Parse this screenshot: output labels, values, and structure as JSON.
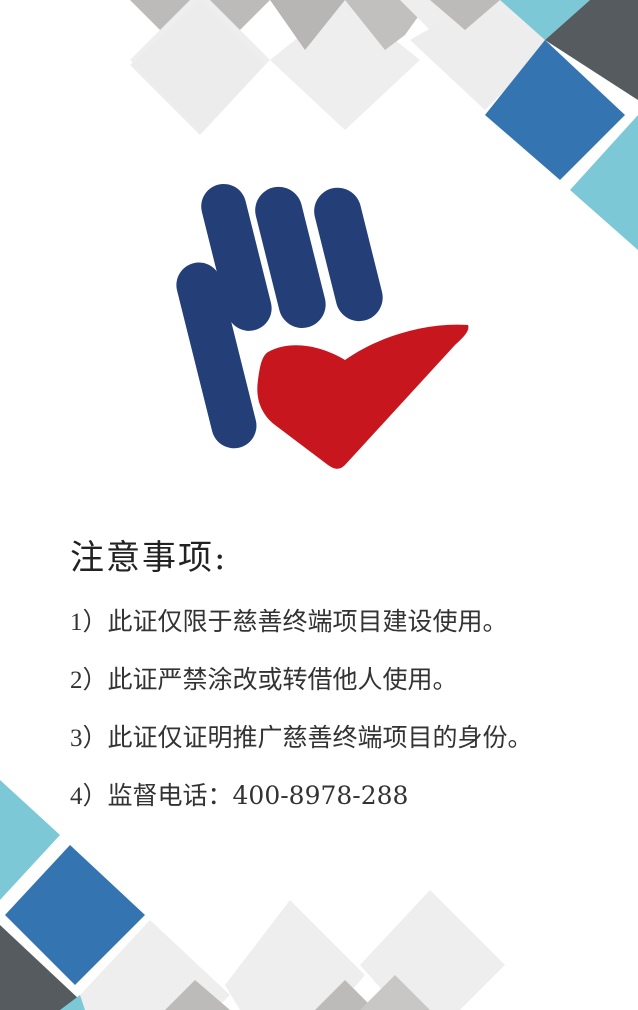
{
  "colors": {
    "light_gray": "#eeeeee",
    "mid_gray": "#b3b3b3",
    "dark_gray": "#555b5f",
    "blue": "#3474b1",
    "cyan": "#7dc8d6",
    "logo_navy": "#243e78",
    "logo_red": "#c8161e"
  },
  "notice": {
    "title": "注意事项:",
    "items": [
      {
        "no": "1）",
        "text": "此证仅限于慈善终端项目建设使用。"
      },
      {
        "no": "2）",
        "text": "此证严禁涂改或转借他人使用。"
      },
      {
        "no": "3）",
        "text": "此证仅证明推广慈善终端项目的身份。"
      },
      {
        "no": "4）",
        "text": "监督电话：400-8978-288"
      }
    ]
  }
}
